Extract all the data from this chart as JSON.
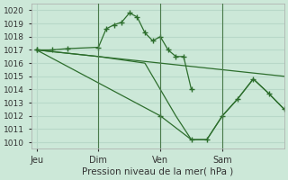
{
  "xlabel": "Pression niveau de la mer( hPa )",
  "bg_color": "#cce8d8",
  "grid_color": "#b8d8c8",
  "line_color": "#2d6e2d",
  "vline_color": "#4a7a4a",
  "ylim": [
    1009.5,
    1020.5
  ],
  "yticks": [
    1010,
    1011,
    1012,
    1013,
    1014,
    1015,
    1016,
    1017,
    1018,
    1019,
    1020
  ],
  "xtick_labels": [
    "Jeu",
    "Dim",
    "Ven",
    "Sam"
  ],
  "xtick_positions": [
    0,
    24,
    48,
    72
  ],
  "vline_positions": [
    24,
    48,
    72
  ],
  "xlim": [
    -2,
    96
  ],
  "series": [
    {
      "x": [
        0,
        6,
        12,
        24,
        27,
        30,
        33,
        36,
        39,
        42,
        45,
        48,
        51,
        54,
        57,
        60
      ],
      "y": [
        1017.0,
        1017.0,
        1017.1,
        1017.2,
        1018.6,
        1018.9,
        1019.1,
        1019.8,
        1019.5,
        1018.3,
        1017.7,
        1018.0,
        1017.0,
        1016.5,
        1016.5,
        1014.0
      ],
      "markers": true
    },
    {
      "x": [
        0,
        96
      ],
      "y": [
        1017.0,
        1015.0
      ],
      "markers": false
    },
    {
      "x": [
        0,
        48,
        60,
        66,
        72,
        78,
        84,
        90,
        96
      ],
      "y": [
        1017.0,
        1012.0,
        1010.2,
        1010.2,
        1012.0,
        1013.3,
        1014.8,
        1013.7,
        1012.5
      ],
      "markers": true
    },
    {
      "x": [
        0,
        24,
        42,
        48,
        54,
        60,
        66,
        72,
        78,
        84,
        90,
        96
      ],
      "y": [
        1017.0,
        1016.5,
        1016.0,
        1014.0,
        1012.0,
        1010.2,
        1010.2,
        1012.0,
        1013.3,
        1014.8,
        1013.7,
        1012.5
      ],
      "markers": false
    }
  ]
}
